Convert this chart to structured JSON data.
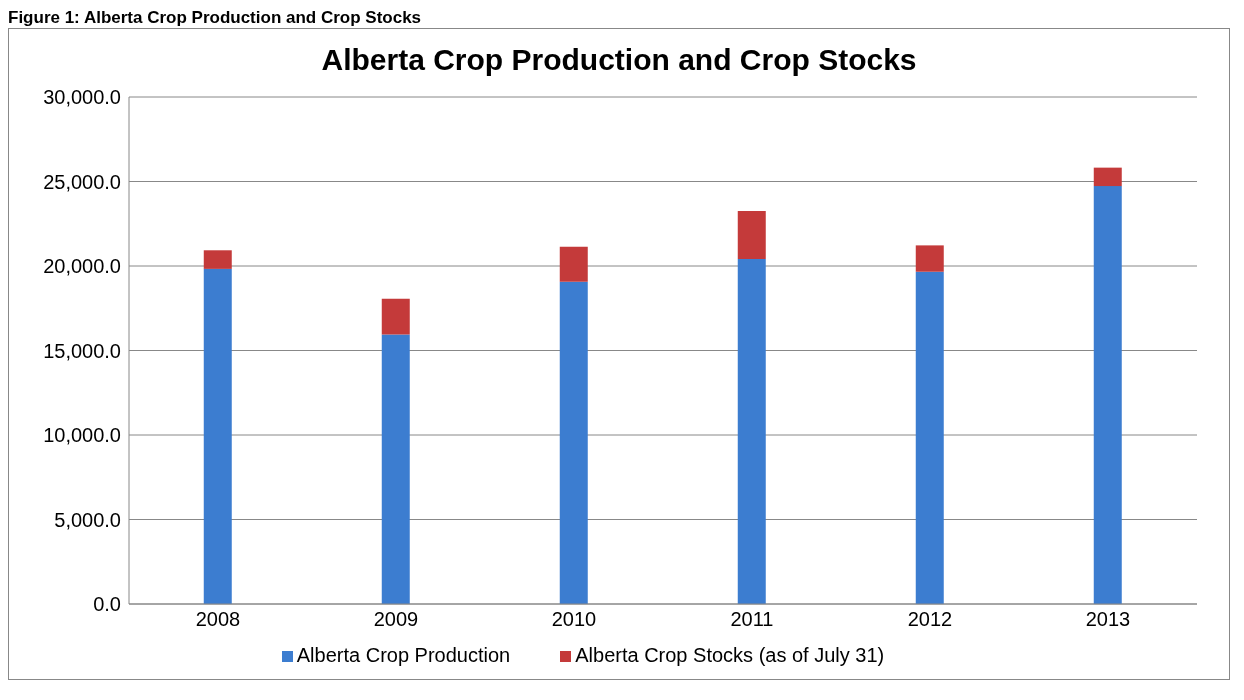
{
  "chart_data": {
    "type": "bar",
    "title": "Alberta Crop Production and Crop Stocks",
    "annotations": [
      "Figure 1:  Alberta Crop Production and Crop Stocks"
    ],
    "categories": [
      "2008",
      "2009",
      "2010",
      "2011",
      "2012",
      "2013"
    ],
    "series": [
      {
        "name": "Alberta Crop Production",
        "color": "#3c7dd0",
        "values": [
          19830,
          15950,
          19070,
          20420,
          19660,
          24730
        ]
      },
      {
        "name": "Alberta Crop Stocks (as of July 31)",
        "color": "#c43a3a",
        "values": [
          1100,
          2110,
          2070,
          2830,
          1560,
          1090
        ]
      }
    ],
    "stacked": true,
    "ylim": [
      0,
      30000
    ],
    "yticks": [
      {
        "value": 0,
        "label": "0.0"
      },
      {
        "value": 5000,
        "label": "5,000.0"
      },
      {
        "value": 10000,
        "label": "10,000.0"
      },
      {
        "value": 15000,
        "label": "15,000.0"
      },
      {
        "value": 20000,
        "label": "20,000.0"
      },
      {
        "value": 25000,
        "label": "25,000.0"
      },
      {
        "value": 30000,
        "label": "30,000.0"
      }
    ],
    "grid": "y",
    "legend": "bottom"
  }
}
